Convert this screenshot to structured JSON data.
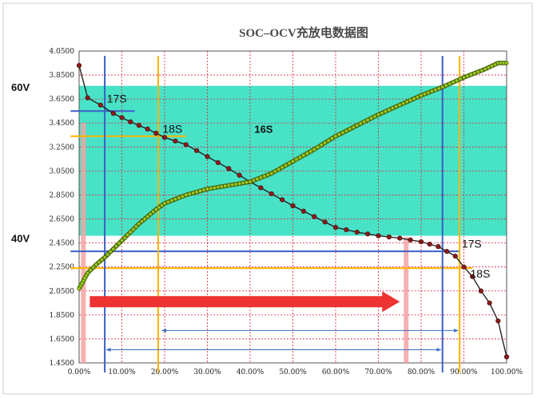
{
  "chart_data": {
    "type": "line",
    "title": "SOC–OCV充放电数据图",
    "xlabel": "",
    "ylabel": "",
    "xlim": [
      0,
      100
    ],
    "ylim": [
      1.45,
      4.05
    ],
    "x_ticks": [
      "0.00%",
      "10.00%",
      "20.00%",
      "30.00%",
      "40.00%",
      "50.00%",
      "60.00%",
      "70.00%",
      "80.00%",
      "90.00%",
      "100.00%"
    ],
    "y_ticks": [
      "1.4500",
      "1.6500",
      "1.8500",
      "2.0500",
      "2.2500",
      "2.4500",
      "2.6500",
      "2.8500",
      "3.0500",
      "3.2500",
      "3.4500",
      "3.6500",
      "3.8500",
      "4.0500"
    ],
    "grid": true,
    "series": [
      {
        "name": "",
        "role": "discharge",
        "x": [
          0,
          2,
          5,
          8,
          12,
          16,
          20,
          25,
          30,
          35,
          40,
          45,
          50,
          55,
          60,
          65,
          70,
          75,
          80,
          84,
          88,
          90,
          92,
          94,
          96,
          98,
          100
        ],
        "y": [
          3.93,
          3.66,
          3.6,
          3.53,
          3.46,
          3.4,
          3.33,
          3.27,
          3.17,
          3.07,
          2.96,
          2.86,
          2.76,
          2.67,
          2.58,
          2.54,
          2.51,
          2.49,
          2.46,
          2.42,
          2.34,
          2.25,
          2.17,
          2.05,
          1.95,
          1.8,
          1.5
        ],
        "color": "#8b1a1a"
      },
      {
        "name": "",
        "role": "charge",
        "x": [
          0,
          2,
          4,
          6,
          8,
          10,
          12,
          14,
          16,
          18,
          20,
          25,
          30,
          35,
          40,
          45,
          50,
          55,
          60,
          65,
          70,
          75,
          80,
          85,
          90,
          95,
          98,
          100
        ],
        "y": [
          2.07,
          2.2,
          2.27,
          2.33,
          2.4,
          2.47,
          2.54,
          2.61,
          2.67,
          2.73,
          2.78,
          2.85,
          2.9,
          2.93,
          2.96,
          3.03,
          3.13,
          3.23,
          3.34,
          3.43,
          3.52,
          3.6,
          3.68,
          3.75,
          3.83,
          3.9,
          3.95,
          3.95
        ],
        "color": "#7ab800"
      }
    ],
    "band": {
      "y_from": 2.51,
      "y_to": 3.76,
      "color": "#3ee0c4",
      "label": "16S"
    },
    "reference_lines": {
      "horizontal": [
        {
          "y": 3.55,
          "x_from": -2,
          "x_to": 13,
          "color": "#3a5fc8"
        },
        {
          "y": 3.34,
          "x_from": -2,
          "x_to": 25,
          "color": "#ffb400"
        },
        {
          "y": 2.38,
          "x_from": -2,
          "x_to": 89,
          "color": "#3a5fc8"
        },
        {
          "y": 2.24,
          "x_from": -2,
          "x_to": 92,
          "color": "#ffb400"
        }
      ],
      "vertical": [
        {
          "x": 6,
          "color": "#3a5fc8"
        },
        {
          "x": 18.5,
          "color": "#ffb400"
        },
        {
          "x": 85,
          "color": "#3a5fc8"
        },
        {
          "x": 89,
          "color": "#ffb400"
        }
      ]
    },
    "annotations": [
      {
        "text": "17S",
        "x": 6.5,
        "y": 3.62
      },
      {
        "text": "18S",
        "x": 19.5,
        "y": 3.37
      },
      {
        "text": "16S",
        "x": 41,
        "y": 3.37
      },
      {
        "text": "17S",
        "x": 89.5,
        "y": 2.41
      },
      {
        "text": "18S",
        "x": 91.5,
        "y": 2.16
      }
    ],
    "voltage_labels": [
      {
        "text": "60V",
        "y": 3.75
      },
      {
        "text": "40V",
        "y": 2.49
      }
    ],
    "arrows": [
      {
        "type": "big",
        "x_from": 2.5,
        "x_to": 75,
        "y": 1.96,
        "color": "#ee3333"
      },
      {
        "type": "range",
        "x_from": 19,
        "x_to": 89,
        "y": 1.72,
        "color": "#3a6fc8"
      },
      {
        "type": "range",
        "x_from": 6,
        "x_to": 85,
        "y": 1.56,
        "color": "#3a6fc8"
      }
    ],
    "highlight_bars": [
      {
        "x": 1,
        "y_from": 1.45,
        "y_to": 3.45,
        "color": "#f4a3a3"
      },
      {
        "x": 76.5,
        "y_from": 1.45,
        "y_to": 2.5,
        "color": "#f4a3a3"
      }
    ]
  }
}
